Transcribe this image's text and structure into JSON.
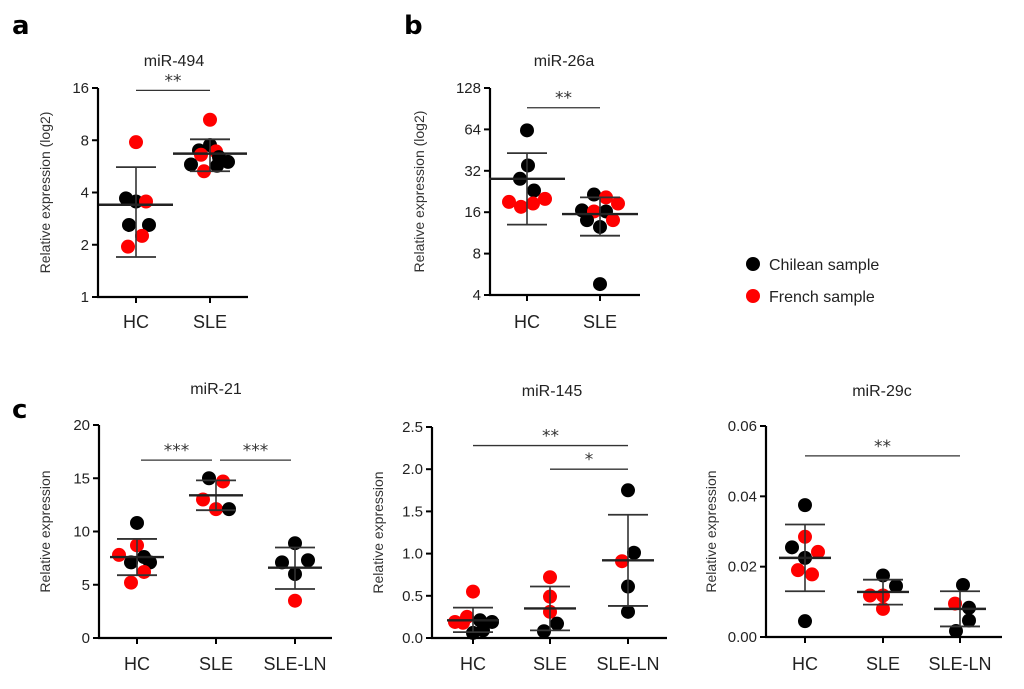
{
  "legend": {
    "entries": [
      {
        "label": "Chilean sample",
        "color": "#000000"
      },
      {
        "label": "French sample",
        "color": "#ff0000"
      }
    ]
  },
  "chart_data": [
    {
      "panel": "a",
      "type": "scatter",
      "title": "miR-494",
      "ylabel": "Relative expression (log2)",
      "yscale": "log2",
      "ylim": [
        1,
        16
      ],
      "yticks": [
        "1",
        "2",
        "4",
        "8",
        "16"
      ],
      "ytick_values": [
        1,
        2,
        4,
        8,
        16
      ],
      "categories": [
        "HC",
        "SLE"
      ],
      "groups": [
        {
          "category": "HC",
          "mean": 3.4,
          "sd_low": 1.7,
          "sd_high": 5.6,
          "points": [
            {
              "v": 7.8,
              "c": "french",
              "dx": 0
            },
            {
              "v": 3.7,
              "c": "chilean",
              "dx": -10
            },
            {
              "v": 3.55,
              "c": "chilean",
              "dx": 0
            },
            {
              "v": 3.55,
              "c": "french",
              "dx": 10
            },
            {
              "v": 2.6,
              "c": "chilean",
              "dx": -7
            },
            {
              "v": 2.6,
              "c": "chilean",
              "dx": 13
            },
            {
              "v": 2.25,
              "c": "french",
              "dx": 6
            },
            {
              "v": 1.95,
              "c": "french",
              "dx": -8
            }
          ]
        },
        {
          "category": "SLE",
          "mean": 6.7,
          "sd_low": 5.3,
          "sd_high": 8.1,
          "points": [
            {
              "v": 10.5,
              "c": "french",
              "dx": 0
            },
            {
              "v": 7.5,
              "c": "chilean",
              "dx": 0
            },
            {
              "v": 7.0,
              "c": "chilean",
              "dx": -11
            },
            {
              "v": 6.9,
              "c": "french",
              "dx": 6
            },
            {
              "v": 6.6,
              "c": "french",
              "dx": -9
            },
            {
              "v": 6.4,
              "c": "chilean",
              "dx": 9
            },
            {
              "v": 6.0,
              "c": "chilean",
              "dx": 18
            },
            {
              "v": 5.8,
              "c": "chilean",
              "dx": -19
            },
            {
              "v": 5.7,
              "c": "chilean",
              "dx": 7
            },
            {
              "v": 5.3,
              "c": "french",
              "dx": -6
            }
          ]
        }
      ],
      "significance": [
        {
          "from": "HC",
          "to": "SLE",
          "label": "**",
          "level": 15.5
        }
      ]
    },
    {
      "panel": "b",
      "type": "scatter",
      "title": "miR-26a",
      "ylabel": "Relative expression (log2)",
      "yscale": "log2",
      "ylim": [
        4,
        128
      ],
      "yticks": [
        "4",
        "8",
        "16",
        "32",
        "64",
        "128"
      ],
      "ytick_values": [
        4,
        8,
        16,
        32,
        64,
        128
      ],
      "categories": [
        "HC",
        "SLE"
      ],
      "groups": [
        {
          "category": "HC",
          "mean": 28,
          "sd_low": 13,
          "sd_high": 43,
          "points": [
            {
              "v": 63,
              "c": "chilean",
              "dx": 0
            },
            {
              "v": 35,
              "c": "chilean",
              "dx": 1
            },
            {
              "v": 28,
              "c": "chilean",
              "dx": -7
            },
            {
              "v": 23,
              "c": "chilean",
              "dx": 7
            },
            {
              "v": 20,
              "c": "french",
              "dx": 18
            },
            {
              "v": 19,
              "c": "french",
              "dx": -18
            },
            {
              "v": 18.5,
              "c": "french",
              "dx": 6
            },
            {
              "v": 17.5,
              "c": "french",
              "dx": -6
            }
          ]
        },
        {
          "category": "SLE",
          "mean": 15.5,
          "sd_low": 10.8,
          "sd_high": 20.5,
          "points": [
            {
              "v": 21.5,
              "c": "chilean",
              "dx": -6
            },
            {
              "v": 20.5,
              "c": "french",
              "dx": 6
            },
            {
              "v": 18.5,
              "c": "french",
              "dx": 18
            },
            {
              "v": 16.5,
              "c": "chilean",
              "dx": -18
            },
            {
              "v": 16.2,
              "c": "french",
              "dx": -6
            },
            {
              "v": 16.2,
              "c": "chilean",
              "dx": 6
            },
            {
              "v": 14,
              "c": "chilean",
              "dx": -13
            },
            {
              "v": 14,
              "c": "french",
              "dx": 13
            },
            {
              "v": 12.5,
              "c": "chilean",
              "dx": 0
            },
            {
              "v": 4.8,
              "c": "chilean",
              "dx": 0
            }
          ]
        }
      ],
      "significance": [
        {
          "from": "HC",
          "to": "SLE",
          "label": "**",
          "level": 92
        }
      ]
    },
    {
      "panel": "c",
      "type": "scatter",
      "title": "miR-21",
      "ylabel": "Relative expression",
      "yscale": "linear",
      "ylim": [
        0,
        20
      ],
      "yticks": [
        "0",
        "5",
        "10",
        "15",
        "20"
      ],
      "ytick_values": [
        0,
        5,
        10,
        15,
        20
      ],
      "categories": [
        "HC",
        "SLE",
        "SLE-LN"
      ],
      "groups": [
        {
          "category": "HC",
          "mean": 7.6,
          "sd_low": 5.9,
          "sd_high": 9.3,
          "points": [
            {
              "v": 10.8,
              "c": "chilean",
              "dx": 0
            },
            {
              "v": 8.7,
              "c": "french",
              "dx": 0
            },
            {
              "v": 7.8,
              "c": "french",
              "dx": -18
            },
            {
              "v": 7.6,
              "c": "chilean",
              "dx": 7
            },
            {
              "v": 7.1,
              "c": "chilean",
              "dx": -6
            },
            {
              "v": 7.1,
              "c": "chilean",
              "dx": 13
            },
            {
              "v": 6.2,
              "c": "french",
              "dx": 7
            },
            {
              "v": 5.2,
              "c": "french",
              "dx": -6
            }
          ]
        },
        {
          "category": "SLE",
          "mean": 13.4,
          "sd_low": 12.0,
          "sd_high": 14.8,
          "points": [
            {
              "v": 15.0,
              "c": "chilean",
              "dx": -7
            },
            {
              "v": 14.7,
              "c": "french",
              "dx": 7
            },
            {
              "v": 13.0,
              "c": "french",
              "dx": -13
            },
            {
              "v": 12.1,
              "c": "french",
              "dx": 0
            },
            {
              "v": 12.1,
              "c": "chilean",
              "dx": 13
            }
          ]
        },
        {
          "category": "SLE-LN",
          "mean": 6.6,
          "sd_low": 4.6,
          "sd_high": 8.5,
          "points": [
            {
              "v": 8.9,
              "c": "chilean",
              "dx": 0
            },
            {
              "v": 7.3,
              "c": "chilean",
              "dx": 13
            },
            {
              "v": 7.1,
              "c": "chilean",
              "dx": -13
            },
            {
              "v": 6.0,
              "c": "chilean",
              "dx": 0
            },
            {
              "v": 3.5,
              "c": "french",
              "dx": 0
            }
          ]
        }
      ],
      "significance": [
        {
          "from": "HC",
          "to": "SLE",
          "label": "***",
          "level": 16.7
        },
        {
          "from": "SLE",
          "to": "SLE-LN",
          "label": "***",
          "level": 16.7
        }
      ]
    },
    {
      "panel": "",
      "type": "scatter",
      "title": "miR-145",
      "ylabel": "Relative expression",
      "yscale": "linear",
      "ylim": [
        0,
        2.5
      ],
      "yticks": [
        "0.0",
        "0.5",
        "1.0",
        "1.5",
        "2.0",
        "2.5"
      ],
      "ytick_values": [
        0,
        0.5,
        1.0,
        1.5,
        2.0,
        2.5
      ],
      "categories": [
        "HC",
        "SLE",
        "SLE-LN"
      ],
      "groups": [
        {
          "category": "HC",
          "mean": 0.21,
          "sd_low": 0.07,
          "sd_high": 0.36,
          "points": [
            {
              "v": 0.55,
              "c": "french",
              "dx": 0
            },
            {
              "v": 0.25,
              "c": "french",
              "dx": -6
            },
            {
              "v": 0.21,
              "c": "chilean",
              "dx": 7
            },
            {
              "v": 0.19,
              "c": "french",
              "dx": -18
            },
            {
              "v": 0.19,
              "c": "chilean",
              "dx": 19
            },
            {
              "v": 0.18,
              "c": "french",
              "dx": -10
            },
            {
              "v": 0.09,
              "c": "chilean",
              "dx": 10
            },
            {
              "v": 0.06,
              "c": "chilean",
              "dx": 0
            }
          ]
        },
        {
          "category": "SLE",
          "mean": 0.35,
          "sd_low": 0.09,
          "sd_high": 0.61,
          "points": [
            {
              "v": 0.72,
              "c": "french",
              "dx": 0
            },
            {
              "v": 0.49,
              "c": "french",
              "dx": 0
            },
            {
              "v": 0.31,
              "c": "french",
              "dx": 0
            },
            {
              "v": 0.17,
              "c": "chilean",
              "dx": 7
            },
            {
              "v": 0.08,
              "c": "chilean",
              "dx": -6
            }
          ]
        },
        {
          "category": "SLE-LN",
          "mean": 0.92,
          "sd_low": 0.38,
          "sd_high": 1.46,
          "points": [
            {
              "v": 1.75,
              "c": "chilean",
              "dx": 0
            },
            {
              "v": 1.01,
              "c": "chilean",
              "dx": 6
            },
            {
              "v": 0.91,
              "c": "french",
              "dx": -6
            },
            {
              "v": 0.61,
              "c": "chilean",
              "dx": 0
            },
            {
              "v": 0.31,
              "c": "chilean",
              "dx": 0
            }
          ]
        }
      ],
      "significance": [
        {
          "from": "HC",
          "to": "SLE-LN",
          "label": "**",
          "level": 2.28
        },
        {
          "from": "SLE",
          "to": "SLE-LN",
          "label": "*",
          "level": 2.0
        }
      ]
    },
    {
      "panel": "",
      "type": "scatter",
      "title": "miR-29c",
      "ylabel": "Relative expression",
      "yscale": "linear",
      "ylim": [
        0,
        0.06
      ],
      "yticks": [
        "0.00",
        "0.02",
        "0.04",
        "0.06"
      ],
      "ytick_values": [
        0,
        0.02,
        0.04,
        0.06
      ],
      "categories": [
        "HC",
        "SLE",
        "SLE-LN"
      ],
      "groups": [
        {
          "category": "HC",
          "mean": 0.0225,
          "sd_low": 0.013,
          "sd_high": 0.032,
          "points": [
            {
              "v": 0.0375,
              "c": "chilean",
              "dx": 0
            },
            {
              "v": 0.0285,
              "c": "french",
              "dx": 0
            },
            {
              "v": 0.0255,
              "c": "chilean",
              "dx": -13
            },
            {
              "v": 0.0242,
              "c": "french",
              "dx": 13
            },
            {
              "v": 0.0225,
              "c": "chilean",
              "dx": 0
            },
            {
              "v": 0.019,
              "c": "french",
              "dx": -7
            },
            {
              "v": 0.0178,
              "c": "french",
              "dx": 7
            },
            {
              "v": 0.0045,
              "c": "chilean",
              "dx": 0
            }
          ]
        },
        {
          "category": "SLE",
          "mean": 0.0128,
          "sd_low": 0.0092,
          "sd_high": 0.0163,
          "points": [
            {
              "v": 0.0175,
              "c": "chilean",
              "dx": 0
            },
            {
              "v": 0.0145,
              "c": "chilean",
              "dx": 13
            },
            {
              "v": 0.0118,
              "c": "french",
              "dx": -13
            },
            {
              "v": 0.0118,
              "c": "french",
              "dx": 0
            },
            {
              "v": 0.008,
              "c": "french",
              "dx": 0
            }
          ]
        },
        {
          "category": "SLE-LN",
          "mean": 0.008,
          "sd_low": 0.003,
          "sd_high": 0.013,
          "points": [
            {
              "v": 0.0148,
              "c": "chilean",
              "dx": 3
            },
            {
              "v": 0.0095,
              "c": "french",
              "dx": -5
            },
            {
              "v": 0.0083,
              "c": "chilean",
              "dx": 9
            },
            {
              "v": 0.0047,
              "c": "chilean",
              "dx": 9
            },
            {
              "v": 0.0017,
              "c": "chilean",
              "dx": -4
            }
          ]
        }
      ],
      "significance": [
        {
          "from": "HC",
          "to": "SLE-LN",
          "label": "**",
          "level": 0.0515
        }
      ]
    }
  ]
}
